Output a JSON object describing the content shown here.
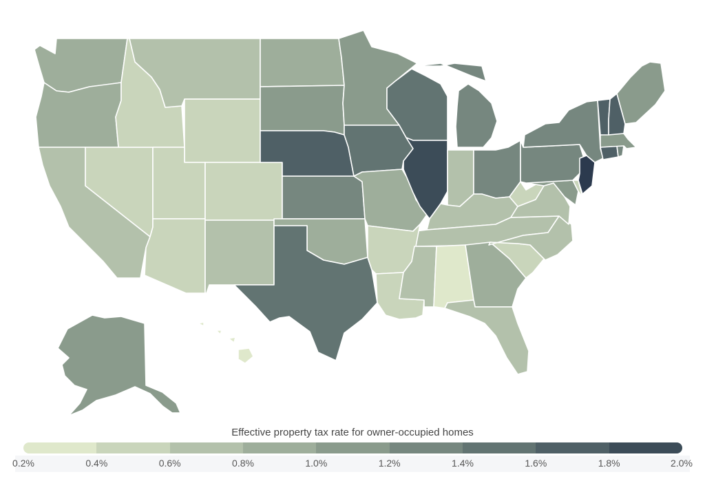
{
  "legend": {
    "title": "Effective property tax rate for owner-occupied homes",
    "ticks": [
      "0.2%",
      "0.4%",
      "0.6%",
      "0.8%",
      "1.0%",
      "1.2%",
      "1.4%",
      "1.6%",
      "1.8%",
      "2.0%"
    ],
    "colors": [
      "#dfe8cb",
      "#c9d5bb",
      "#b3c1ab",
      "#9eae9b",
      "#8a9b8c",
      "#76877f",
      "#627472",
      "#4f6066",
      "#3c4c58",
      "#2c3a4e"
    ]
  },
  "states": [
    {
      "id": "washington",
      "value": 0.87
    },
    {
      "id": "oregon",
      "value": 0.83
    },
    {
      "id": "california",
      "value": 0.71
    },
    {
      "id": "nevada",
      "value": 0.55
    },
    {
      "id": "idaho",
      "value": 0.56
    },
    {
      "id": "montana",
      "value": 0.71
    },
    {
      "id": "wyoming",
      "value": 0.56
    },
    {
      "id": "utah",
      "value": 0.52
    },
    {
      "id": "arizona",
      "value": 0.56
    },
    {
      "id": "colorado",
      "value": 0.49
    },
    {
      "id": "new-mexico",
      "value": 0.7
    },
    {
      "id": "north-dakota",
      "value": 0.98
    },
    {
      "id": "south-dakota",
      "value": 1.08
    },
    {
      "id": "nebraska",
      "value": 1.61
    },
    {
      "id": "kansas",
      "value": 1.34
    },
    {
      "id": "oklahoma",
      "value": 0.89
    },
    {
      "id": "texas",
      "value": 1.58
    },
    {
      "id": "minnesota",
      "value": 1.02
    },
    {
      "id": "iowa",
      "value": 1.43
    },
    {
      "id": "missouri",
      "value": 0.93
    },
    {
      "id": "arkansas",
      "value": 0.6
    },
    {
      "id": "louisiana",
      "value": 0.54
    },
    {
      "id": "wisconsin",
      "value": 1.48
    },
    {
      "id": "illinois",
      "value": 1.97
    },
    {
      "id": "michigan",
      "value": 1.23
    },
    {
      "id": "indiana",
      "value": 0.77
    },
    {
      "id": "ohio",
      "value": 1.36
    },
    {
      "id": "kentucky",
      "value": 0.78
    },
    {
      "id": "tennessee",
      "value": 0.61
    },
    {
      "id": "mississippi",
      "value": 0.66
    },
    {
      "id": "alabama",
      "value": 0.37
    },
    {
      "id": "georgia",
      "value": 0.81
    },
    {
      "id": "florida",
      "value": 0.79
    },
    {
      "id": "south-carolina",
      "value": 0.53
    },
    {
      "id": "north-carolina",
      "value": 0.77
    },
    {
      "id": "virginia",
      "value": 0.75
    },
    {
      "id": "west-virginia",
      "value": 0.56
    },
    {
      "id": "maryland",
      "value": 1.0
    },
    {
      "id": "delaware",
      "value": 0.55
    },
    {
      "id": "pennsylvania",
      "value": 1.38
    },
    {
      "id": "new-jersey",
      "value": 2.0
    },
    {
      "id": "new-york",
      "value": 1.4
    },
    {
      "id": "connecticut",
      "value": 1.7
    },
    {
      "id": "rhode-island",
      "value": 1.26
    },
    {
      "id": "massachusetts",
      "value": 1.04
    },
    {
      "id": "vermont",
      "value": 1.71
    },
    {
      "id": "new-hampshire",
      "value": 1.77
    },
    {
      "id": "maine",
      "value": 1.04
    },
    {
      "id": "alaska",
      "value": 1.0
    },
    {
      "id": "hawaii",
      "value": 0.38
    }
  ]
}
